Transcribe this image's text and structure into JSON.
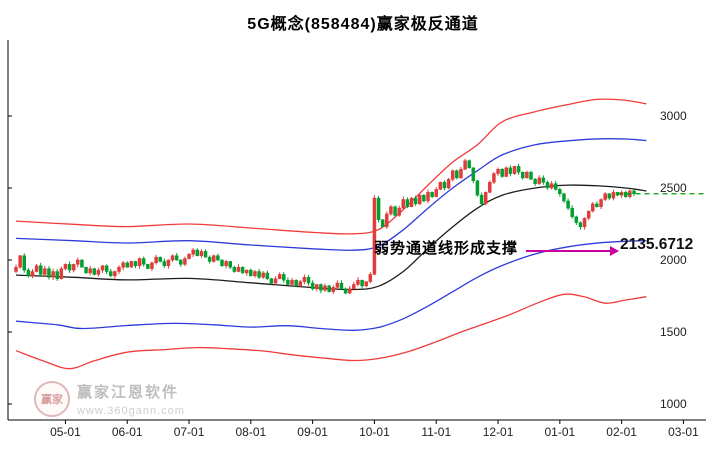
{
  "window": {
    "title": "5G概念(858484)赢家极反通道"
  },
  "annotation": {
    "support_text": "弱势通道线形成支撑",
    "support_price": "2135.6712",
    "arrow_color": "#c800a1"
  },
  "watermark": {
    "logo_chars": "赢家",
    "brand": "赢家江恩软件",
    "url": "www.360gann.com"
  },
  "chart_data": {
    "type": "candlestick",
    "title": "5G概念(858484)赢家极反通道",
    "legend_position": "none",
    "grid": false,
    "y_ticks": [
      1000,
      1500,
      2000,
      2500,
      3000
    ],
    "ylim": [
      890,
      3490
    ],
    "x_ticks": {
      "labels": [
        "05-01",
        "06-01",
        "07-01",
        "08-01",
        "09-01",
        "10-01",
        "11-01",
        "12-01",
        "01-01",
        "02-01",
        "03-01"
      ],
      "days": [
        12,
        27,
        42,
        57,
        72,
        87,
        102,
        117,
        132,
        147,
        162
      ]
    },
    "closes": [
      1950,
      2030,
      1930,
      1890,
      1920,
      1960,
      1900,
      1940,
      1880,
      1920,
      1870,
      1940,
      1970,
      1930,
      1970,
      2000,
      1950,
      1910,
      1940,
      1900,
      1930,
      1960,
      1920,
      1890,
      1920,
      1950,
      1980,
      1950,
      1990,
      1960,
      2010,
      1970,
      1940,
      1980,
      2020,
      1990,
      1960,
      2000,
      2030,
      2000,
      1970,
      2010,
      2040,
      2070,
      2030,
      2060,
      2020,
      1990,
      2030,
      2000,
      1960,
      1990,
      1950,
      1920,
      1950,
      1910,
      1930,
      1890,
      1920,
      1880,
      1910,
      1870,
      1840,
      1870,
      1900,
      1860,
      1830,
      1860,
      1820,
      1850,
      1880,
      1840,
      1800,
      1830,
      1790,
      1820,
      1780,
      1810,
      1840,
      1800,
      1770,
      1800,
      1830,
      1860,
      1820,
      1850,
      1900,
      2430,
      2280,
      2230,
      2320,
      2370,
      2310,
      2360,
      2420,
      2370,
      2430,
      2390,
      2450,
      2410,
      2470,
      2440,
      2490,
      2540,
      2500,
      2560,
      2620,
      2570,
      2630,
      2690,
      2640,
      2550,
      2450,
      2390,
      2470,
      2540,
      2600,
      2630,
      2580,
      2640,
      2600,
      2650,
      2610,
      2570,
      2610,
      2560,
      2530,
      2570,
      2540,
      2500,
      2530,
      2490,
      2460,
      2410,
      2360,
      2300,
      2260,
      2230,
      2290,
      2340,
      2390,
      2370,
      2420,
      2460,
      2430,
      2470,
      2450,
      2470,
      2440,
      2480,
      2460
    ],
    "channel_series": [
      {
        "name": "upper-outer-rail",
        "color": "#f03b3b",
        "points": [
          [
            0,
            2270
          ],
          [
            14,
            2248
          ],
          [
            27,
            2232
          ],
          [
            42,
            2250
          ],
          [
            57,
            2222
          ],
          [
            72,
            2192
          ],
          [
            82,
            2182
          ],
          [
            88,
            2212
          ],
          [
            94,
            2350
          ],
          [
            100,
            2520
          ],
          [
            106,
            2680
          ],
          [
            112,
            2800
          ],
          [
            118,
            2960
          ],
          [
            126,
            3030
          ],
          [
            134,
            3080
          ],
          [
            141,
            3115
          ],
          [
            147,
            3112
          ],
          [
            153,
            3085
          ]
        ]
      },
      {
        "name": "upper-inner-rail",
        "color": "#2f3bd9",
        "points": [
          [
            0,
            2150
          ],
          [
            14,
            2134
          ],
          [
            27,
            2118
          ],
          [
            42,
            2134
          ],
          [
            57,
            2104
          ],
          [
            72,
            2078
          ],
          [
            82,
            2068
          ],
          [
            88,
            2096
          ],
          [
            94,
            2210
          ],
          [
            100,
            2360
          ],
          [
            106,
            2500
          ],
          [
            112,
            2620
          ],
          [
            118,
            2730
          ],
          [
            126,
            2800
          ],
          [
            134,
            2828
          ],
          [
            142,
            2842
          ],
          [
            148,
            2840
          ],
          [
            153,
            2830
          ]
        ]
      },
      {
        "name": "life-midline",
        "color": "#1c1c1c",
        "points": [
          [
            0,
            1895
          ],
          [
            14,
            1880
          ],
          [
            27,
            1862
          ],
          [
            42,
            1872
          ],
          [
            57,
            1842
          ],
          [
            72,
            1808
          ],
          [
            82,
            1795
          ],
          [
            88,
            1818
          ],
          [
            94,
            1920
          ],
          [
            100,
            2080
          ],
          [
            106,
            2230
          ],
          [
            112,
            2360
          ],
          [
            118,
            2450
          ],
          [
            126,
            2500
          ],
          [
            134,
            2520
          ],
          [
            142,
            2514
          ],
          [
            148,
            2500
          ],
          [
            153,
            2480
          ]
        ]
      },
      {
        "name": "lower-inner-rail",
        "color": "#2f3bd9",
        "points": [
          [
            0,
            1575
          ],
          [
            10,
            1550
          ],
          [
            16,
            1524
          ],
          [
            27,
            1545
          ],
          [
            38,
            1560
          ],
          [
            48,
            1550
          ],
          [
            57,
            1534
          ],
          [
            66,
            1544
          ],
          [
            74,
            1524
          ],
          [
            82,
            1512
          ],
          [
            88,
            1532
          ],
          [
            94,
            1592
          ],
          [
            100,
            1680
          ],
          [
            106,
            1780
          ],
          [
            112,
            1880
          ],
          [
            118,
            1962
          ],
          [
            126,
            2042
          ],
          [
            134,
            2092
          ],
          [
            142,
            2120
          ],
          [
            148,
            2130
          ],
          [
            153,
            2135
          ]
        ]
      },
      {
        "name": "lower-outer-rail",
        "color": "#f03b3b",
        "points": [
          [
            0,
            1370
          ],
          [
            7,
            1295
          ],
          [
            13,
            1245
          ],
          [
            19,
            1300
          ],
          [
            27,
            1360
          ],
          [
            36,
            1378
          ],
          [
            44,
            1392
          ],
          [
            52,
            1383
          ],
          [
            60,
            1368
          ],
          [
            68,
            1338
          ],
          [
            75,
            1318
          ],
          [
            82,
            1302
          ],
          [
            88,
            1316
          ],
          [
            95,
            1362
          ],
          [
            102,
            1432
          ],
          [
            108,
            1500
          ],
          [
            114,
            1560
          ],
          [
            120,
            1622
          ],
          [
            127,
            1706
          ],
          [
            133,
            1762
          ],
          [
            138,
            1744
          ],
          [
            143,
            1700
          ],
          [
            148,
            1722
          ],
          [
            153,
            1745
          ]
        ]
      }
    ],
    "last_price_line": {
      "price": 2460,
      "style": "dashed",
      "color": "#009a00",
      "from_day": 146,
      "to_day": 168
    },
    "support_level": 2135.6712,
    "palette": {
      "up": "#e13b3b",
      "down": "#009f2f",
      "axis": "#000000",
      "tick_label": "#222222"
    }
  }
}
